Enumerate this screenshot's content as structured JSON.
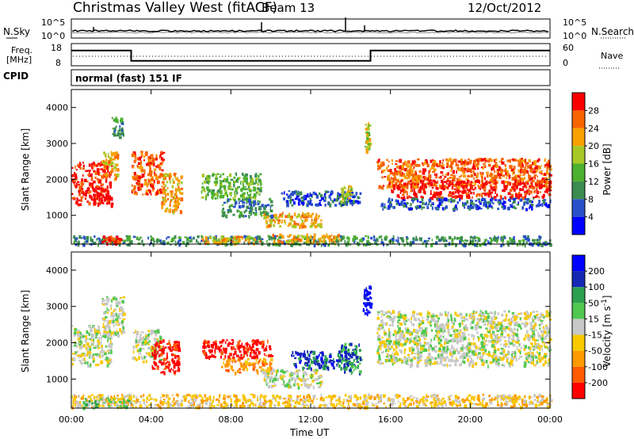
{
  "header": {
    "title": "Christmas Valley West (fitACF)",
    "beam": "Beam 13",
    "date": "12/Oct/2012"
  },
  "strip": {
    "nsky_label": "N.Sky",
    "nsearch_label": "N.Search",
    "freq_label_1": "Freq.",
    "freq_label_2": "[MHz]",
    "nave_label": "Nave",
    "cpid_label": "CPID",
    "cpid_text": "normal (fast) 151 IF",
    "noise_ticks": [
      "10^5",
      "10^0"
    ],
    "noise_right_ticks": [
      "10^5",
      "10^0"
    ],
    "freq_ticks": [
      "18",
      "8"
    ],
    "nave_ticks": [
      "60",
      "0"
    ],
    "freq_steps": [
      {
        "t": 0.0,
        "v": 15
      },
      {
        "t": 3.0,
        "v": 10
      },
      {
        "t": 15.0,
        "v": 15
      },
      {
        "t": 24.0,
        "v": 15
      }
    ]
  },
  "colors": {
    "power": [
      "#0000ff",
      "#2850c8",
      "#3c8c50",
      "#4cb030",
      "#a8c828",
      "#f8a000",
      "#f86400",
      "#f80000"
    ],
    "velocity": [
      "#ff0000",
      "#ff5a00",
      "#ff9a00",
      "#f8c800",
      "#c8c8c8",
      "#50c850",
      "#2ca050",
      "#1428b4",
      "#0000ff"
    ],
    "ground": "#c8c8c8"
  },
  "chart_data": [
    {
      "type": "heatmap",
      "name": "power",
      "ylabel": "Slant Range [km]",
      "xlabel": "",
      "xlim": [
        0,
        24
      ],
      "ylim": [
        200,
        4500
      ],
      "yticks": [
        1000,
        2000,
        3000,
        4000
      ],
      "colorbar_label": "Power [dB]",
      "colorbar_ticks": [
        "28",
        "24",
        "20",
        "16",
        "12",
        "8",
        "4"
      ],
      "regions": [
        {
          "t0": 0.0,
          "t1": 2.0,
          "r0": 1300,
          "r1": 2500,
          "level": 7
        },
        {
          "t0": 1.5,
          "t1": 2.3,
          "r0": 2000,
          "r1": 2800,
          "level": 5
        },
        {
          "t0": 2.0,
          "t1": 2.6,
          "r0": 3200,
          "r1": 3800,
          "level": 2
        },
        {
          "t0": 3.0,
          "t1": 4.6,
          "r0": 1600,
          "r1": 2800,
          "level": 6
        },
        {
          "t0": 4.5,
          "t1": 5.5,
          "r0": 1100,
          "r1": 2200,
          "level": 5
        },
        {
          "t0": 6.5,
          "t1": 9.5,
          "r0": 1500,
          "r1": 2200,
          "level": 3
        },
        {
          "t0": 7.5,
          "t1": 10.0,
          "r0": 1000,
          "r1": 1500,
          "level": 2
        },
        {
          "t0": 9.5,
          "t1": 12.5,
          "r0": 700,
          "r1": 1100,
          "level": 5
        },
        {
          "t0": 10.5,
          "t1": 14.5,
          "r0": 1300,
          "r1": 1700,
          "level": 1
        },
        {
          "t0": 13.5,
          "t1": 14.0,
          "r0": 1400,
          "r1": 1900,
          "level": 4
        },
        {
          "t0": 14.7,
          "t1": 15.0,
          "r0": 2800,
          "r1": 3600,
          "level": 4
        },
        {
          "t0": 15.3,
          "t1": 24.0,
          "r0": 1800,
          "r1": 2600,
          "level": 6
        },
        {
          "t0": 16.0,
          "t1": 24.0,
          "r0": 1500,
          "r1": 2000,
          "level": 7
        },
        {
          "t0": 15.5,
          "t1": 24.0,
          "r0": 1200,
          "r1": 1500,
          "level": 1
        },
        {
          "t0": 0.0,
          "t1": 24.0,
          "r0": 200,
          "r1": 450,
          "level": 2
        },
        {
          "t0": 1.5,
          "t1": 2.5,
          "r0": 250,
          "r1": 450,
          "level": 7
        },
        {
          "t0": 6.5,
          "t1": 9.5,
          "r0": 250,
          "r1": 450,
          "level": 5
        },
        {
          "t0": 10.0,
          "t1": 13.5,
          "r0": 250,
          "r1": 500,
          "level": 5
        }
      ]
    },
    {
      "type": "heatmap",
      "name": "velocity",
      "ylabel": "Slant Range [km]",
      "xlabel": "Time UT",
      "xlim": [
        0,
        24
      ],
      "ylim": [
        200,
        4500
      ],
      "yticks": [
        1000,
        2000,
        3000,
        4000
      ],
      "xticks": [
        "00:00",
        "04:00",
        "08:00",
        "12:00",
        "16:00",
        "20:00",
        "00:00"
      ],
      "colorbar_label": "Velocity [m s^-1]",
      "colorbar_ticks": [
        "200",
        "100",
        "50",
        "15",
        "-15",
        "-50",
        "-100",
        "-200"
      ],
      "regions": [
        {
          "t0": 0.0,
          "t1": 2.0,
          "r0": 1400,
          "r1": 2500,
          "level": 4
        },
        {
          "t0": 1.5,
          "t1": 2.6,
          "r0": 2200,
          "r1": 3300,
          "level": 4
        },
        {
          "t0": 3.0,
          "t1": 4.5,
          "r0": 1500,
          "r1": 2400,
          "level": 4
        },
        {
          "t0": 4.0,
          "t1": 5.4,
          "r0": 1200,
          "r1": 2100,
          "level": 0
        },
        {
          "t0": 6.5,
          "t1": 10.0,
          "r0": 1600,
          "r1": 2100,
          "level": 0
        },
        {
          "t0": 7.5,
          "t1": 10.0,
          "r0": 1200,
          "r1": 1600,
          "level": 2
        },
        {
          "t0": 9.5,
          "t1": 12.5,
          "r0": 800,
          "r1": 1300,
          "level": 4
        },
        {
          "t0": 11.0,
          "t1": 14.0,
          "r0": 1300,
          "r1": 1800,
          "level": 7
        },
        {
          "t0": 13.5,
          "t1": 14.5,
          "r0": 1200,
          "r1": 2000,
          "level": 6
        },
        {
          "t0": 14.6,
          "t1": 15.0,
          "r0": 2800,
          "r1": 3600,
          "level": 8
        },
        {
          "t0": 15.3,
          "t1": 24.0,
          "r0": 1400,
          "r1": 2900,
          "level": 4
        },
        {
          "t0": 0.0,
          "t1": 24.0,
          "r0": 250,
          "r1": 600,
          "level": 3
        },
        {
          "t0": 0.5,
          "t1": 3.0,
          "r0": 250,
          "r1": 500,
          "level": 5
        }
      ]
    }
  ]
}
